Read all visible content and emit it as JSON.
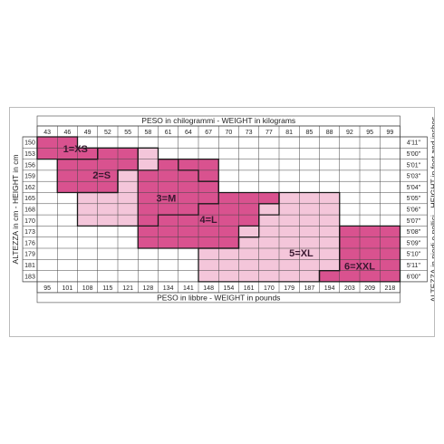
{
  "chart_data": {
    "type": "heatmap",
    "top_axis_title": "PESO in chilogrammi -  WEIGHT in kilograms",
    "bottom_axis_title": "PESO in libbre -  WEIGHT in pounds",
    "left_axis_title": "ALTEZZA in cm - HEIGHT in cm",
    "right_axis_title": "ALTEZZA in piedi e pollici - HEIGHT in feet and inches",
    "weights_kg": [
      "43",
      "46",
      "49",
      "52",
      "55",
      "58",
      "61",
      "64",
      "67",
      "70",
      "73",
      "77",
      "81",
      "85",
      "88",
      "92",
      "95",
      "99"
    ],
    "weights_lb": [
      "95",
      "101",
      "108",
      "115",
      "121",
      "128",
      "134",
      "141",
      "148",
      "154",
      "161",
      "170",
      "179",
      "187",
      "194",
      "203",
      "209",
      "218"
    ],
    "heights_cm": [
      "150",
      "153",
      "156",
      "159",
      "162",
      "165",
      "168",
      "170",
      "173",
      "176",
      "179",
      "181",
      "183"
    ],
    "heights_ft": [
      "4'11''",
      "5'00''",
      "5'01''",
      "5'03''",
      "5'04''",
      "5'05''",
      "5'06''",
      "5'07''",
      "5'08''",
      "5'09''",
      "5'10''",
      "5'11''",
      "6'00''"
    ],
    "sizes": [
      {
        "label": "1=XS",
        "color": "#d9528f",
        "weight_kg": [
          43,
          55
        ],
        "height_cm": [
          150,
          156
        ]
      },
      {
        "label": "2=S",
        "color": "#d9528f",
        "weight_kg": [
          46,
          58
        ],
        "height_cm": [
          156,
          165
        ]
      },
      {
        "label": "3=M",
        "color": "#f4c6da",
        "weight_kg": [
          46,
          67
        ],
        "height_cm": [
          156,
          173
        ]
      },
      {
        "label": "4=L",
        "color": "#d9528f",
        "weight_kg": [
          58,
          77
        ],
        "height_cm": [
          159,
          179
        ]
      },
      {
        "label": "5=XL",
        "color": "#f4c6da",
        "weight_kg": [
          67,
          88
        ],
        "height_cm": [
          165,
          183
        ]
      },
      {
        "label": "6=XXL",
        "color": "#d9528f",
        "weight_kg": [
          77,
          99
        ],
        "height_cm": [
          173,
          183
        ]
      }
    ]
  }
}
